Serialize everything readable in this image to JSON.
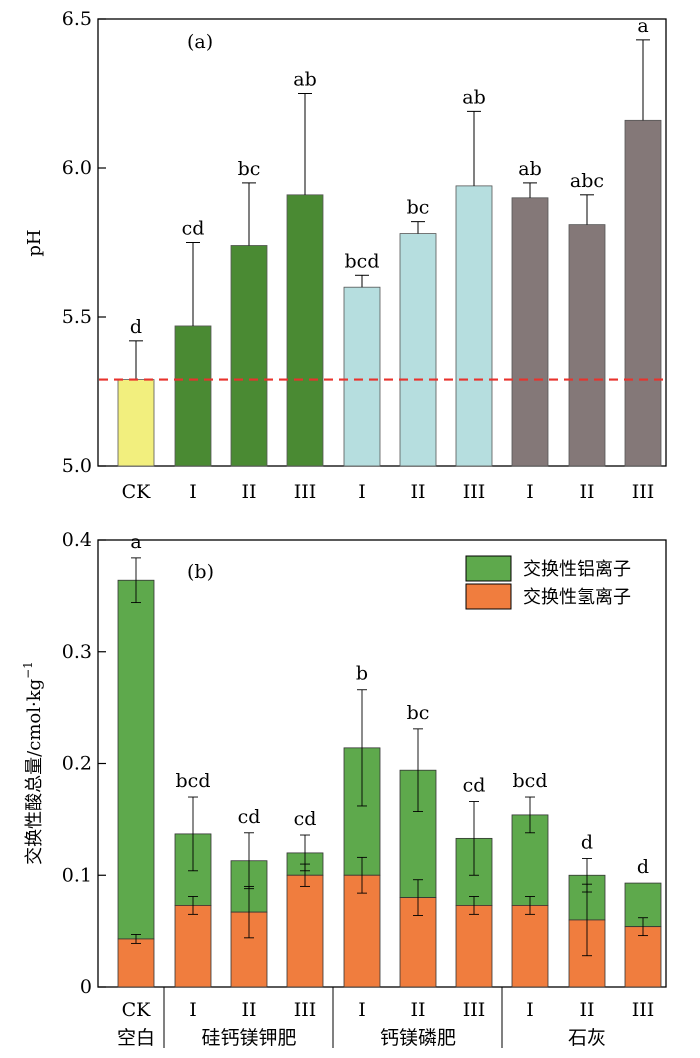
{
  "colors": {
    "ck_yellow": "#f2ef7e",
    "dark_green": "#4a8a33",
    "light_cyan": "#b6dedf",
    "taupe": "#847878",
    "al_green": "#5ea94c",
    "h_orange": "#f07d3e",
    "ref_line": "#e8332d"
  },
  "chart_data": [
    {
      "type": "bar",
      "panel_label": "(a)",
      "ylabel": "pH",
      "ylim": [
        5.0,
        6.5
      ],
      "yticks": [
        "5.0",
        "5.5",
        "6.0",
        "6.5"
      ],
      "categories": [
        "CK",
        "I",
        "II",
        "III",
        "I",
        "II",
        "III",
        "I",
        "II",
        "III"
      ],
      "values": [
        5.29,
        5.47,
        5.74,
        5.91,
        5.6,
        5.78,
        5.94,
        5.9,
        5.81,
        6.16
      ],
      "errors": [
        0.13,
        0.28,
        0.21,
        0.34,
        0.04,
        0.04,
        0.25,
        0.05,
        0.1,
        0.27
      ],
      "significance": [
        "d",
        "cd",
        "bc",
        "ab",
        "bcd",
        "bc",
        "ab",
        "ab",
        "abc",
        "a"
      ],
      "color_keys": [
        "ck_yellow",
        "dark_green",
        "dark_green",
        "dark_green",
        "light_cyan",
        "light_cyan",
        "light_cyan",
        "taupe",
        "taupe",
        "taupe"
      ],
      "reference_line": 5.29
    },
    {
      "type": "bar",
      "stacked": true,
      "panel_label": "(b)",
      "ylabel": "交换性酸总量/cmol·kg",
      "ylabel_sup": "−1",
      "ylim": [
        0,
        0.4
      ],
      "yticks": [
        "0",
        "0.1",
        "0.2",
        "0.3",
        "0.4"
      ],
      "categories": [
        "CK",
        "I",
        "II",
        "III",
        "I",
        "II",
        "III",
        "I",
        "II",
        "III"
      ],
      "groups": [
        "空白",
        "硅钙镁钾肥",
        "钙镁磷肥",
        "石灰"
      ],
      "series": [
        {
          "name": "交换性氢离子",
          "color_key": "h_orange",
          "values": [
            0.043,
            0.073,
            0.067,
            0.1,
            0.1,
            0.08,
            0.073,
            0.073,
            0.06,
            0.054
          ],
          "errors": [
            0.004,
            0.008,
            0.023,
            0.01,
            0.016,
            0.016,
            0.008,
            0.008,
            0.032,
            0.008
          ]
        },
        {
          "name": "交换性铝离子",
          "color_key": "al_green",
          "values": [
            0.321,
            0.064,
            0.046,
            0.02,
            0.114,
            0.114,
            0.06,
            0.081,
            0.04,
            0.039
          ]
        }
      ],
      "totals": [
        0.364,
        0.137,
        0.113,
        0.12,
        0.214,
        0.194,
        0.133,
        0.154,
        0.1,
        0.093
      ],
      "total_errors": [
        0.02,
        0.033,
        0.025,
        0.016,
        0.052,
        0.037,
        0.033,
        0.016,
        0.015,
        0.0
      ],
      "significance": [
        "a",
        "bcd",
        "cd",
        "cd",
        "b",
        "bc",
        "cd",
        "bcd",
        "d",
        "d"
      ],
      "legend_position": "top-right"
    }
  ]
}
